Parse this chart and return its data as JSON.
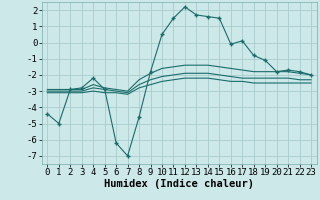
{
  "xlabel": "Humidex (Indice chaleur)",
  "background_color": "#cce8e8",
  "grid_color": "#aacccc",
  "line_color": "#1a6b6b",
  "x_main": [
    0,
    1,
    2,
    3,
    4,
    5,
    6,
    7,
    8,
    9,
    10,
    11,
    12,
    13,
    14,
    15,
    16,
    17,
    18,
    19,
    20,
    21,
    22,
    23
  ],
  "y_main": [
    -4.4,
    -5.0,
    -2.9,
    -2.8,
    -2.2,
    -2.9,
    -6.2,
    -7.0,
    -4.6,
    -1.8,
    0.5,
    1.5,
    2.2,
    1.7,
    1.6,
    1.5,
    -0.1,
    0.1,
    -0.8,
    -1.1,
    -1.8,
    -1.7,
    -1.8,
    -2.0
  ],
  "x_line2": [
    0,
    1,
    2,
    3,
    4,
    5,
    6,
    7,
    8,
    9,
    10,
    11,
    12,
    13,
    14,
    15,
    16,
    17,
    18,
    19,
    20,
    21,
    22,
    23
  ],
  "y_line2": [
    -2.9,
    -2.9,
    -2.9,
    -2.9,
    -2.6,
    -2.8,
    -2.9,
    -3.0,
    -2.3,
    -1.9,
    -1.6,
    -1.5,
    -1.4,
    -1.4,
    -1.4,
    -1.5,
    -1.6,
    -1.7,
    -1.8,
    -1.8,
    -1.8,
    -1.8,
    -1.9,
    -2.0
  ],
  "x_line3": [
    0,
    1,
    2,
    3,
    4,
    5,
    6,
    7,
    8,
    9,
    10,
    11,
    12,
    13,
    14,
    15,
    16,
    17,
    18,
    19,
    20,
    21,
    22,
    23
  ],
  "y_line3": [
    -3.0,
    -3.0,
    -3.0,
    -3.0,
    -2.8,
    -2.9,
    -3.0,
    -3.1,
    -2.6,
    -2.3,
    -2.1,
    -2.0,
    -1.9,
    -1.9,
    -1.9,
    -2.0,
    -2.1,
    -2.2,
    -2.2,
    -2.2,
    -2.2,
    -2.2,
    -2.3,
    -2.3
  ],
  "x_line4": [
    0,
    1,
    2,
    3,
    4,
    5,
    6,
    7,
    8,
    9,
    10,
    11,
    12,
    13,
    14,
    15,
    16,
    17,
    18,
    19,
    20,
    21,
    22,
    23
  ],
  "y_line4": [
    -3.1,
    -3.1,
    -3.1,
    -3.1,
    -3.0,
    -3.1,
    -3.1,
    -3.2,
    -2.8,
    -2.6,
    -2.4,
    -2.3,
    -2.2,
    -2.2,
    -2.2,
    -2.3,
    -2.4,
    -2.4,
    -2.5,
    -2.5,
    -2.5,
    -2.5,
    -2.5,
    -2.5
  ],
  "ylim": [
    -7.5,
    2.5
  ],
  "xlim": [
    -0.5,
    23.5
  ],
  "yticks": [
    -7,
    -6,
    -5,
    -4,
    -3,
    -2,
    -1,
    0,
    1,
    2
  ],
  "xticks": [
    0,
    1,
    2,
    3,
    4,
    5,
    6,
    7,
    8,
    9,
    10,
    11,
    12,
    13,
    14,
    15,
    16,
    17,
    18,
    19,
    20,
    21,
    22,
    23
  ],
  "tick_fontsize": 6.5,
  "xlabel_fontsize": 7.5
}
